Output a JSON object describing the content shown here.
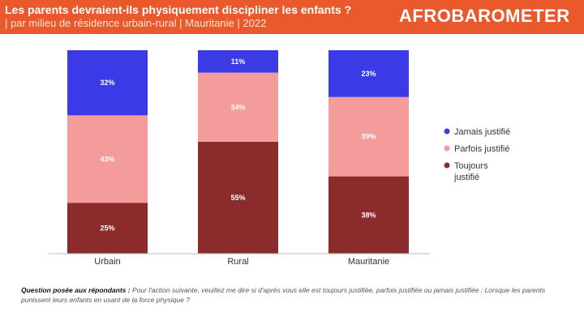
{
  "header": {
    "title": "Les parents devraient-ils physiquement discipliner les enfants ?",
    "subtitle": "| par milieu de résidence urbain-rural | Mauritanie | 2022",
    "logo": "AFROBAROMETER"
  },
  "chart_data": {
    "type": "bar",
    "stacked": true,
    "categories": [
      "Urbain",
      "Rural",
      "Mauritanie"
    ],
    "series": [
      {
        "name": "Toujours justifié",
        "color": "#8B2B2B",
        "values": [
          25,
          55,
          38
        ]
      },
      {
        "name": "Parfois justifié",
        "color": "#F49C9C",
        "values": [
          43,
          34,
          39
        ]
      },
      {
        "name": "Jamais justifié",
        "color": "#3A3AE6",
        "values": [
          32,
          11,
          23
        ]
      }
    ],
    "ylim": [
      0,
      100
    ],
    "legend": "right",
    "grid": false
  },
  "legend": [
    {
      "label": "Jamais justifié",
      "color": "#3A3AE6"
    },
    {
      "label": "Parfois justifié",
      "color": "#F49C9C"
    },
    {
      "label": "Toujours justifié",
      "color": "#8B2B2B"
    }
  ],
  "note": {
    "bold": "Question posée aux répondants :",
    "text": " Pour l'action suivante, veuillez me dire si d'après vous elle est toujours justifiée, parfois justifiée ou jamais justifiée : Lorsque les parents punissent leurs enfants en usant de la force physique ?"
  }
}
